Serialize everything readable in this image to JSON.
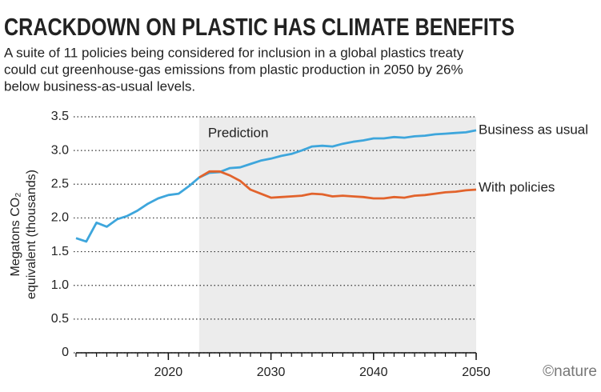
{
  "chart_data": {
    "type": "line",
    "title": "CRACKDOWN ON PLASTIC HAS CLIMATE BENEFITS",
    "subtitle": [
      "A suite of 11 policies being considered for inclusion in a global plastics treaty",
      "could cut greenhouse-gas emissions from plastic production in 2050 by 26%",
      "below business-as-usual levels."
    ],
    "ylabel": [
      "Megatons CO₂",
      "equivalent (thousands)"
    ],
    "source": "©nature",
    "shaded_region": {
      "label": "Prediction",
      "from": 2023,
      "to": 2050
    },
    "x": [
      2011,
      2012,
      2013,
      2014,
      2015,
      2016,
      2017,
      2018,
      2019,
      2020,
      2021,
      2022,
      2023,
      2024,
      2025,
      2026,
      2027,
      2028,
      2029,
      2030,
      2031,
      2032,
      2033,
      2034,
      2035,
      2036,
      2037,
      2038,
      2039,
      2040,
      2041,
      2042,
      2043,
      2044,
      2045,
      2046,
      2047,
      2048,
      2049,
      2050
    ],
    "series": [
      {
        "name": "Business as usual",
        "color": "#3ea6dc",
        "values": [
          1.7,
          1.65,
          1.93,
          1.87,
          1.98,
          2.03,
          2.11,
          2.21,
          2.29,
          2.34,
          2.36,
          2.47,
          2.6,
          2.67,
          2.68,
          2.74,
          2.75,
          2.8,
          2.85,
          2.88,
          2.92,
          2.95,
          3.0,
          3.06,
          3.07,
          3.06,
          3.1,
          3.13,
          3.15,
          3.18,
          3.18,
          3.2,
          3.19,
          3.21,
          3.22,
          3.24,
          3.25,
          3.26,
          3.27,
          3.3
        ]
      },
      {
        "name": "With policies",
        "color": "#e2632c",
        "values": [
          null,
          null,
          null,
          null,
          null,
          null,
          null,
          null,
          null,
          null,
          null,
          null,
          2.6,
          2.69,
          2.69,
          2.63,
          2.55,
          2.42,
          2.36,
          2.3,
          2.31,
          2.32,
          2.33,
          2.36,
          2.35,
          2.32,
          2.33,
          2.32,
          2.31,
          2.29,
          2.29,
          2.31,
          2.3,
          2.33,
          2.34,
          2.36,
          2.38,
          2.39,
          2.41,
          2.42
        ]
      }
    ],
    "xlim": [
      2011,
      2050
    ],
    "xticks": [
      2020,
      2030,
      2040,
      2050
    ],
    "ylim": [
      0,
      3.5
    ],
    "yticks": [
      0,
      0.5,
      {
        "value": 1,
        "label": "1.0"
      },
      1.5,
      {
        "value": 2,
        "label": "2.0"
      },
      2.5,
      {
        "value": 3,
        "label": "3.0"
      },
      3.5
    ],
    "grid": true
  }
}
